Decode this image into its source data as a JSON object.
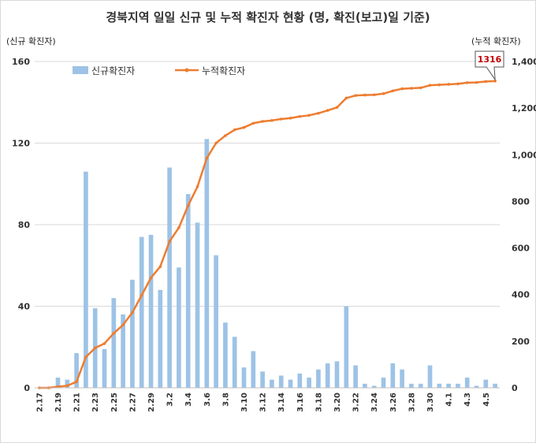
{
  "chart_data": {
    "type": "bar+line",
    "title": "경북지역 일일 신규 및 누적 확진자 현황 (명, 확진(보고)일 기준)",
    "y_left_label": "(신규 확진자)",
    "y_right_label": "(누적 확진자)",
    "y_left_ticks": [
      "0",
      "40",
      "80",
      "120",
      "160"
    ],
    "y_right_ticks": [
      "0",
      "200",
      "400",
      "600",
      "800",
      "1,000",
      "1,200",
      "1,400"
    ],
    "ylim_left": [
      0,
      160
    ],
    "ylim_right": [
      0,
      1400
    ],
    "grid": true,
    "legend_position": "top-left",
    "x_tick_labels": [
      "2.17",
      "2.19",
      "2.21",
      "2.23",
      "2.25",
      "2.27",
      "2.29",
      "3.2",
      "3.4",
      "3.6",
      "3.8",
      "3.10",
      "3.12",
      "3.14",
      "3.16",
      "3.18",
      "3.20",
      "3.22",
      "3.24",
      "3.26",
      "3.28",
      "3.30",
      "4.1",
      "4.3",
      "4.5"
    ],
    "categories": [
      "2.17",
      "2.18",
      "2.19",
      "2.20",
      "2.21",
      "2.22",
      "2.23",
      "2.24",
      "2.25",
      "2.26",
      "2.27",
      "2.28",
      "2.29",
      "3.1",
      "3.2",
      "3.3",
      "3.4",
      "3.5",
      "3.6",
      "3.7",
      "3.8",
      "3.9",
      "3.10",
      "3.11",
      "3.12",
      "3.13",
      "3.14",
      "3.15",
      "3.16",
      "3.17",
      "3.18",
      "3.19",
      "3.20",
      "3.21",
      "3.22",
      "3.23",
      "3.24",
      "3.25",
      "3.26",
      "3.27",
      "3.28",
      "3.29",
      "3.30",
      "3.31",
      "4.1",
      "4.2",
      "4.3",
      "4.4",
      "4.5",
      "4.6"
    ],
    "series": [
      {
        "name": "신규확진자",
        "type": "bar",
        "axis": "left",
        "color": "#9dc3e6",
        "values": [
          0,
          0,
          5,
          4,
          17,
          106,
          39,
          19,
          44,
          36,
          53,
          74,
          75,
          48,
          108,
          59,
          95,
          81,
          122,
          65,
          32,
          25,
          10,
          18,
          8,
          4,
          6,
          4,
          7,
          5,
          9,
          12,
          13,
          40,
          11,
          2,
          1,
          5,
          12,
          9,
          2,
          2,
          11,
          2,
          2,
          2,
          5,
          1,
          4,
          2
        ]
      },
      {
        "name": "누적확진자",
        "type": "line",
        "axis": "right",
        "color": "#ed7d31",
        "values": [
          0,
          0,
          5,
          9,
          26,
          132,
          171,
          190,
          234,
          270,
          323,
          397,
          472,
          520,
          628,
          687,
          782,
          863,
          985,
          1050,
          1082,
          1107,
          1117,
          1135,
          1143,
          1147,
          1153,
          1157,
          1164,
          1169,
          1178,
          1190,
          1203,
          1243,
          1254,
          1256,
          1257,
          1262,
          1274,
          1283,
          1285,
          1287,
          1298,
          1300,
          1302,
          1304,
          1309,
          1310,
          1314,
          1316
        ]
      }
    ],
    "callout": {
      "text": "1316",
      "color": "#c00000"
    }
  }
}
